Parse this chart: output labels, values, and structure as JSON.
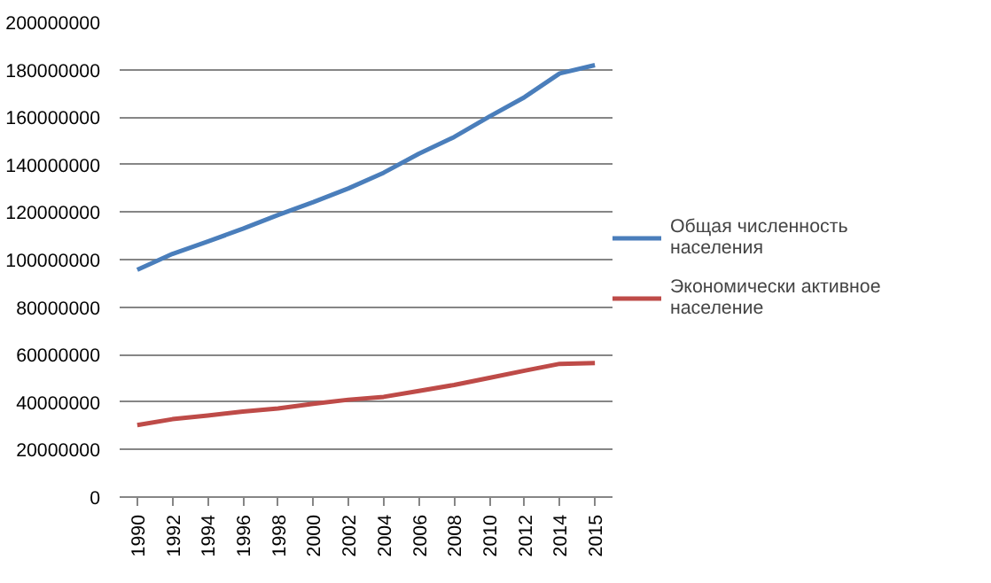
{
  "chart_data": {
    "type": "line",
    "categories": [
      "1990",
      "1992",
      "1994",
      "1996",
      "1998",
      "2000",
      "2002",
      "2004",
      "2006",
      "2008",
      "2010",
      "2012",
      "2014",
      "2015"
    ],
    "series": [
      {
        "name": "Общая численность населения",
        "color": "#4a7ebb",
        "values": [
          95700000,
          102400000,
          107600000,
          113000000,
          118800000,
          124200000,
          130000000,
          136600000,
          144600000,
          151600000,
          160200000,
          168400000,
          178400000,
          181900000
        ]
      },
      {
        "name": "Экономически активное население",
        "color": "#be4b48",
        "values": [
          30300000,
          32800000,
          34300000,
          36000000,
          37300000,
          39300000,
          41000000,
          42200000,
          44700000,
          47200000,
          50200000,
          53200000,
          56100000,
          56400000
        ]
      }
    ],
    "ylim": [
      0,
      200000000
    ],
    "yticks": [
      0,
      20000000,
      40000000,
      60000000,
      80000000,
      100000000,
      120000000,
      140000000,
      160000000,
      180000000,
      200000000
    ],
    "grid": "y",
    "legend": "right",
    "marker": "none",
    "line_style": "solid"
  }
}
